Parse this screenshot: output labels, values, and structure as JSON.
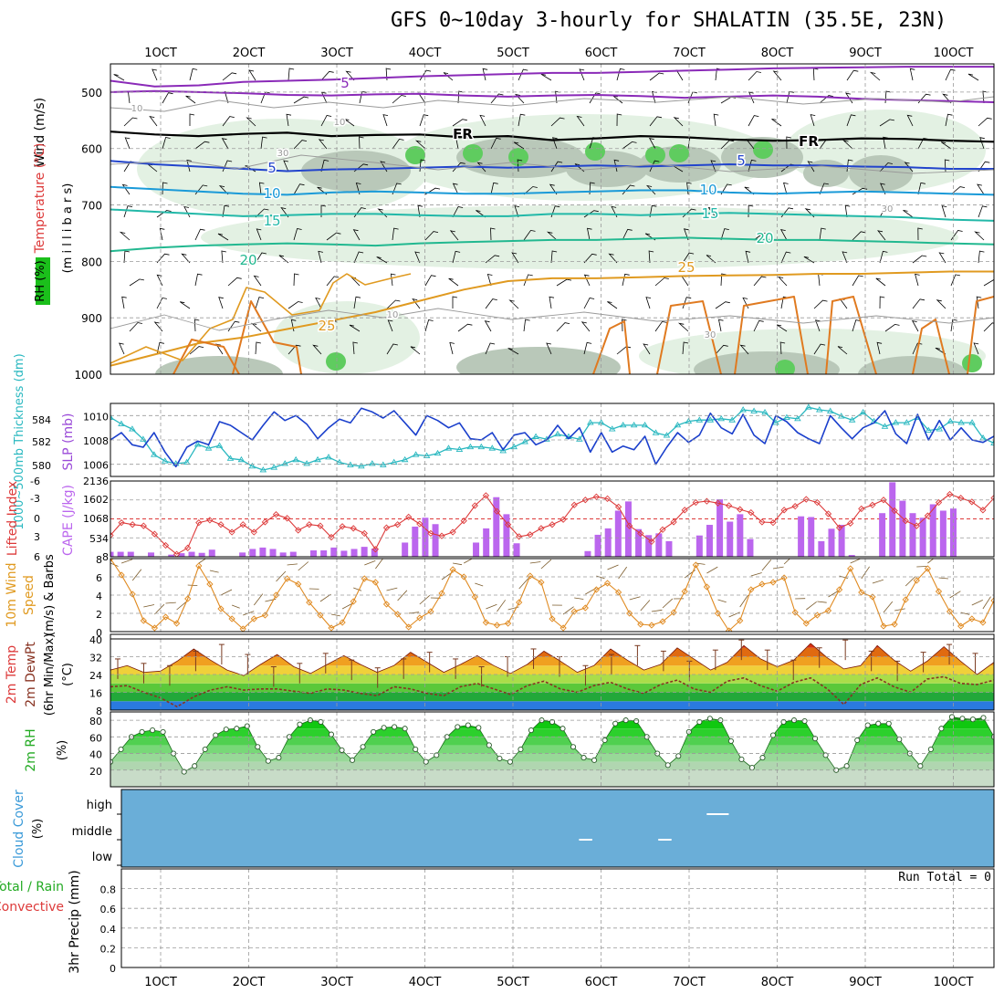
{
  "title": "GFS 0~10day 3-hourly for SHALATIN (35.5E, 23N)",
  "colors": {
    "grid": "#9a9a9a",
    "rh_light": "#e3f1e3",
    "rh_mid": "#b9c8b9",
    "rh_high": "#5fcc5f",
    "t5": "#2244cc",
    "t10": "#1a9ad8",
    "t15": "#22b8a8",
    "t20": "#22b890",
    "t25": "#e09a20",
    "t30": "#e07a20",
    "purple": "#8a2ab8",
    "freezing": "#000000",
    "slp": "#1a3fcc",
    "thickness": "#2ab8c0",
    "lifted": "#dd3a3a",
    "cape": "#bb66ee",
    "wind_speed": "#e08a20",
    "dewpoint": "#883322",
    "rh2m": "#22bb22",
    "cloud": "#6aaed8"
  },
  "chart_data": [
    {
      "panel": "upper-air",
      "type": "contour",
      "ylabel": "(m i l l i b a r s)",
      "legend": [
        "RH (%)",
        "Temperature (°C)",
        "Wind (m/s)"
      ],
      "y_ticks": [
        "500",
        "600",
        "700",
        "800",
        "900",
        "1000"
      ],
      "ylim": [
        450,
        1000
      ],
      "contour_labels": [
        "5",
        "5",
        "5",
        "10",
        "10",
        "15",
        "15",
        "20",
        "20",
        "25",
        "25",
        "FR",
        "FR",
        "10",
        "10",
        "30",
        "30",
        "30",
        "10"
      ],
      "isotherms": [
        {
          "label": "-5",
          "color": "purple",
          "y": [
            480,
            490,
            488,
            482,
            480,
            478,
            475,
            472,
            470,
            468,
            466,
            466,
            464,
            462,
            460,
            458,
            457,
            456,
            455,
            455,
            455
          ]
        },
        {
          "label": "-5b",
          "color": "purple",
          "y": [
            500,
            498,
            500,
            502,
            505,
            506,
            504,
            503,
            506,
            508,
            506,
            505,
            507,
            510,
            508,
            506,
            508,
            512,
            514,
            516,
            518
          ]
        },
        {
          "label": "FR",
          "color": "freezing",
          "y": [
            570,
            575,
            578,
            574,
            572,
            578,
            576,
            575,
            580,
            578,
            585,
            582,
            578,
            580,
            584,
            586,
            585,
            582,
            583,
            586,
            588
          ]
        },
        {
          "label": "5",
          "color": "t5",
          "y": [
            622,
            628,
            632,
            636,
            640,
            637,
            636,
            634,
            632,
            634,
            632,
            630,
            632,
            630,
            628,
            630,
            630,
            632,
            633,
            636,
            636
          ]
        },
        {
          "label": "10",
          "color": "t10",
          "y": [
            668,
            672,
            676,
            680,
            682,
            678,
            676,
            678,
            680,
            680,
            678,
            676,
            674,
            674,
            678,
            680,
            678,
            676,
            678,
            680,
            682
          ]
        },
        {
          "label": "15",
          "color": "t15",
          "y": [
            708,
            712,
            716,
            720,
            718,
            716,
            716,
            718,
            720,
            720,
            716,
            716,
            718,
            716,
            714,
            716,
            718,
            720,
            722,
            726,
            728
          ]
        },
        {
          "label": "20",
          "color": "t20",
          "y": [
            782,
            776,
            772,
            770,
            768,
            770,
            772,
            768,
            766,
            764,
            762,
            762,
            760,
            758,
            760,
            762,
            762,
            764,
            766,
            768,
            770
          ]
        },
        {
          "label": "25",
          "color": "t25",
          "y": [
            985,
            965,
            945,
            935,
            920,
            905,
            890,
            870,
            850,
            835,
            830,
            830,
            828,
            826,
            825,
            824,
            822,
            822,
            820,
            818,
            818
          ]
        }
      ]
    },
    {
      "panel": "slp-thickness",
      "type": "line",
      "ylabel_left": "1000~500mb Thickness (dm)",
      "ylabel_right": "SLP (mb)",
      "ylabel_left_ticks": [
        "580",
        "582",
        "584"
      ],
      "ylabel_right_ticks": [
        "1006",
        "1008",
        "1010"
      ],
      "series": [
        {
          "name": "SLP",
          "unit": "mb",
          "ylim": [
            1005,
            1011
          ],
          "values": [
            1008.0,
            1008.6,
            1007.6,
            1007.4,
            1008.6,
            1007.0,
            1005.8,
            1007.4,
            1007.9,
            1007.6,
            1009.5,
            1009.2,
            1008.6,
            1008.0,
            1009.2,
            1010.3,
            1009.6,
            1010.0,
            1009.3,
            1008.1,
            1009.0,
            1009.7,
            1009.4,
            1010.6,
            1010.3,
            1009.8,
            1010.4,
            1009.4,
            1008.4,
            1010.0,
            1009.6,
            1009.0,
            1009.4,
            1008.1,
            1008.0,
            1008.6,
            1007.2,
            1008.4,
            1008.6,
            1007.6,
            1008.0,
            1009.2,
            1008.1,
            1009.0,
            1007.0,
            1008.6,
            1007.0,
            1007.5,
            1007.2,
            1008.3,
            1006.0,
            1007.4,
            1008.6,
            1007.8,
            1008.4,
            1010.2,
            1009.0,
            1008.5,
            1010.1,
            1008.4,
            1007.7,
            1010.0,
            1009.5,
            1008.6,
            1008.1,
            1007.7,
            1010.0,
            1009.0,
            1008.1,
            1009.0,
            1009.4,
            1010.4,
            1008.5,
            1007.7,
            1010.1,
            1008.0,
            1009.6,
            1008.0,
            1009.0,
            1008.0,
            1007.8,
            1008.3
          ]
        },
        {
          "name": "Thickness",
          "unit": "dm",
          "ylim": [
            579.3,
            585.0
          ],
          "values": [
            583.9,
            583.4,
            583.0,
            582.2,
            581.0,
            580.5,
            580.3,
            580.4,
            581.8,
            581.5,
            581.7,
            580.7,
            580.6,
            580.1,
            579.8,
            580.0,
            580.3,
            580.6,
            580.3,
            580.6,
            580.8,
            580.4,
            580.2,
            580.1,
            580.3,
            580.2,
            580.4,
            580.6,
            581.0,
            580.9,
            581.1,
            581.5,
            581.4,
            581.6,
            581.6,
            581.5,
            581.3,
            581.6,
            582.0,
            582.4,
            582.2,
            582.6,
            582.4,
            582.2,
            583.5,
            583.5,
            583.0,
            583.3,
            583.3,
            583.3,
            582.7,
            582.5,
            583.3,
            583.6,
            583.7,
            583.7,
            583.8,
            583.7,
            584.5,
            584.4,
            584.3,
            583.5,
            583.9,
            583.8,
            584.7,
            584.5,
            584.4,
            584.0,
            583.7,
            584.3,
            583.6,
            583.2,
            583.5,
            583.5,
            583.9,
            582.9,
            583.0,
            583.6,
            583.5,
            583.5,
            582.3,
            581.9
          ]
        }
      ]
    },
    {
      "panel": "lifted-cape",
      "type": "line+bar",
      "ylabel_left": "Lifted Index",
      "ylabel_right": "CAPE (J/kg)",
      "li_ticks": [
        "-6",
        "-3",
        "0",
        "3",
        "6"
      ],
      "cape_ticks": [
        "534",
        "1068",
        "1602",
        "2136"
      ],
      "lifted_index": {
        "ylim": [
          6,
          -6
        ],
        "values": [
          2.6,
          0.6,
          0.9,
          1.1,
          2.4,
          4.2,
          5.6,
          4.6,
          0.6,
          0.2,
          0.9,
          2.1,
          0.9,
          2.1,
          0.5,
          -0.7,
          -0.1,
          1.8,
          0.9,
          1.1,
          2.9,
          1.2,
          1.5,
          2.3,
          4.8,
          1.4,
          0.9,
          -0.3,
          0.8,
          2.3,
          2.7,
          2.1,
          0.3,
          -2.1,
          -3.7,
          -1.2,
          0.9,
          2.8,
          2.5,
          1.5,
          0.9,
          0.1,
          -2.2,
          -3.0,
          -3.5,
          -3.2,
          -1.9,
          1.1,
          2.3,
          3.6,
          1.7,
          0.5,
          -1.4,
          -2.6,
          -2.8,
          -2.5,
          -2.1,
          -1.5,
          -1.0,
          0.5,
          0.6,
          -1.4,
          -2.0,
          -3.1,
          -2.6,
          -0.8,
          1.4,
          0.7,
          -1.6,
          -2.2,
          -3.0,
          -1.3,
          0.3,
          1.1,
          -0.5,
          -2.6,
          -3.9,
          -3.3,
          -2.7,
          -1.4,
          -3.3
        ]
      },
      "cape": {
        "ylim": [
          0,
          2136
        ],
        "values": [
          140,
          140,
          140,
          0,
          120,
          0,
          60,
          100,
          140,
          110,
          200,
          0,
          0,
          120,
          220,
          260,
          220,
          120,
          140,
          0,
          180,
          180,
          260,
          170,
          220,
          280,
          230,
          0,
          0,
          400,
          850,
          1100,
          920,
          0,
          0,
          0,
          400,
          800,
          1680,
          1200,
          380,
          0,
          0,
          0,
          0,
          0,
          0,
          160,
          620,
          800,
          1300,
          1560,
          780,
          610,
          660,
          440,
          0,
          0,
          600,
          900,
          1620,
          990,
          1200,
          500,
          0,
          0,
          0,
          0,
          1140,
          1120,
          440,
          790,
          900,
          50,
          0,
          0,
          1230,
          2100,
          1580,
          1230,
          1100,
          1480,
          1300,
          1360,
          0,
          0,
          0,
          0
        ]
      }
    },
    {
      "panel": "wind10m",
      "type": "line",
      "ylabel": "10m Wind Speed (m/s) & Barbs",
      "y_ticks": [
        "0",
        "2",
        "4",
        "6",
        "8"
      ],
      "ylim": [
        0,
        8
      ],
      "values": [
        8.0,
        6.2,
        4.1,
        1.2,
        0.4,
        1.6,
        0.9,
        3.6,
        7.2,
        5.2,
        2.5,
        1.4,
        0.3,
        1.4,
        1.8,
        4.0,
        5.8,
        5.2,
        3.2,
        1.8,
        0.4,
        1.0,
        3.3,
        5.8,
        5.4,
        3.0,
        1.9,
        0.5,
        1.5,
        2.2,
        4.2,
        6.8,
        6.0,
        3.8,
        1.0,
        0.7,
        0.9,
        3.2,
        6.1,
        5.4,
        1.4,
        0.4,
        2.2,
        2.6,
        4.6,
        5.3,
        4.3,
        2.0,
        0.8,
        0.7,
        1.1,
        2.1,
        4.4,
        7.3,
        4.9,
        2.0,
        0.1,
        1.2,
        4.6,
        5.2,
        5.4,
        5.9,
        2.1,
        0.9,
        1.8,
        2.3,
        4.6,
        6.9,
        4.3,
        3.8,
        0.6,
        0.8,
        3.5,
        5.6,
        6.9,
        4.4,
        2.2,
        0.6,
        1.4,
        1.0,
        3.4
      ]
    },
    {
      "panel": "temperature",
      "type": "area",
      "ylabel": "2m Temp 2m DewPt (6hr Min/Max) (°C)",
      "y_ticks": [
        "8",
        "16",
        "24",
        "32",
        "40"
      ],
      "ylim": [
        8,
        40
      ],
      "temp": [
        26.0,
        28.0,
        25.0,
        25.5,
        30.0,
        35.5,
        30.5,
        26.0,
        23.5,
        28.5,
        33.0,
        27.5,
        24.5,
        28.5,
        32.5,
        28.5,
        25.0,
        28.0,
        34.0,
        29.5,
        25.0,
        28.5,
        32.5,
        28.0,
        24.5,
        28.5,
        34.5,
        30.0,
        25.0,
        28.0,
        35.5,
        30.5,
        26.0,
        28.5,
        36.0,
        31.0,
        26.0,
        29.5,
        37.0,
        31.0,
        27.5,
        30.5,
        38.0,
        31.5,
        26.5,
        28.0,
        37.0,
        30.5,
        25.5,
        30.0,
        36.5,
        30.0,
        24.0,
        29.5
      ],
      "dewpoint": [
        18.5,
        19.0,
        16.0,
        13.5,
        9.5,
        14.0,
        17.0,
        18.5,
        17.0,
        17.5,
        17.5,
        16.5,
        15.5,
        17.5,
        17.0,
        15.5,
        14.5,
        18.5,
        17.5,
        15.5,
        14.5,
        18.5,
        20.0,
        17.5,
        15.0,
        19.0,
        21.0,
        17.5,
        16.0,
        19.0,
        20.5,
        17.5,
        15.5,
        19.5,
        21.5,
        17.5,
        16.0,
        21.0,
        22.5,
        19.0,
        16.5,
        20.5,
        22.5,
        17.5,
        10.5,
        19.5,
        22.5,
        18.5,
        16.0,
        22.0,
        23.0,
        20.0,
        19.5,
        21.5
      ],
      "max_whiskers": [
        31.0,
        29.0,
        28.0,
        34.5,
        37.5,
        33.0,
        27.5,
        29.0,
        33.5,
        30.5,
        27.0,
        31.0,
        34.0,
        31.0,
        27.5,
        32.0,
        35.5,
        32.0,
        28.0,
        33.0,
        37.0,
        34.5,
        30.0,
        35.0,
        39.5,
        35.0,
        30.5,
        36.0,
        39.5,
        34.5,
        30.0,
        34.0,
        37.5,
        33.5,
        29.0
      ]
    },
    {
      "panel": "rh2m",
      "type": "area",
      "ylabel": "2m RH (%)",
      "y_ticks": [
        "20",
        "40",
        "60",
        "80"
      ],
      "ylim": [
        0,
        90
      ],
      "values": [
        30,
        45,
        60,
        66,
        68,
        66,
        40,
        18,
        25,
        45,
        62,
        69,
        70,
        73,
        48,
        31,
        35,
        60,
        75,
        80,
        78,
        63,
        44,
        32,
        48,
        66,
        71,
        72,
        70,
        45,
        30,
        38,
        60,
        72,
        74,
        71,
        50,
        34,
        30,
        45,
        68,
        80,
        78,
        70,
        48,
        35,
        32,
        56,
        76,
        80,
        79,
        60,
        40,
        26,
        37,
        66,
        78,
        82,
        80,
        55,
        33,
        23,
        35,
        62,
        78,
        80,
        79,
        58,
        38,
        20,
        25,
        56,
        74,
        76,
        76,
        57,
        40,
        25,
        45,
        70,
        84,
        82,
        81,
        83,
        60
      ]
    },
    {
      "panel": "cloud-cover",
      "type": "heatmap",
      "ylabel": "Cloud Cover (%)",
      "levels": [
        "high",
        "middle",
        "low"
      ],
      "white_dashes": [
        {
          "level": "high",
          "day_range": [
            7.2,
            7.45
          ]
        },
        {
          "level": "middle",
          "day_range": [
            5.75,
            5.9
          ]
        },
        {
          "level": "middle",
          "day_range": [
            6.65,
            6.8
          ]
        }
      ]
    },
    {
      "panel": "precip",
      "type": "bar",
      "ylabel": "3hr Precip (mm)",
      "legend": [
        "Total / Rain",
        "Convective"
      ],
      "y_ticks": [
        "0",
        "0.2",
        "0.4",
        "0.6",
        "0.8"
      ],
      "ylim": [
        0,
        1.0
      ],
      "run_total": "Run Total = 0",
      "values": []
    }
  ],
  "x_axis": {
    "top_labels": [
      "1OCT",
      "2OCT",
      "3OCT",
      "4OCT",
      "5OCT",
      "6OCT",
      "7OCT",
      "8OCT",
      "9OCT",
      "10OCT"
    ],
    "bottom_labels": [
      "1OCT",
      "2OCT",
      "3OCT",
      "4OCT",
      "5OCT",
      "6OCT",
      "7OCT",
      "8OCT",
      "9OCT",
      "10OCT"
    ],
    "day_range": [
      0,
      10.12
    ]
  }
}
